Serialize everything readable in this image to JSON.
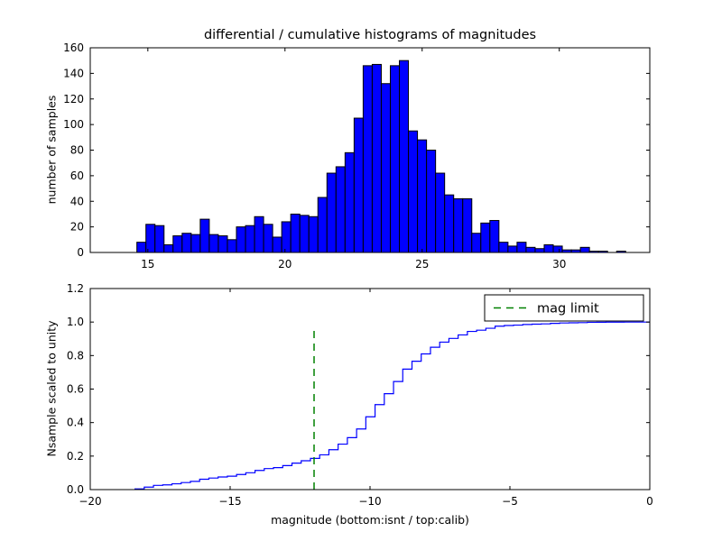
{
  "figure": {
    "title": "differential / cumulative histograms of magnitudes",
    "background": "#ffffff"
  },
  "chart_data": [
    {
      "id": "top-histogram",
      "type": "bar",
      "ylabel": "number of samples",
      "xlim": [
        12.9,
        33.3
      ],
      "ylim": [
        0,
        160
      ],
      "xticks": [
        15,
        20,
        25,
        30
      ],
      "xtick_labels": [
        "15",
        "20",
        "25",
        "30"
      ],
      "yticks": [
        0,
        20,
        40,
        60,
        80,
        100,
        120,
        140,
        160
      ],
      "ytick_labels": [
        "0",
        "20",
        "40",
        "60",
        "80",
        "100",
        "120",
        "140",
        "160"
      ],
      "bar_color": "#0000ff",
      "bar_edge_color": "#000000",
      "grid": false,
      "bin_start": 14.6,
      "bin_width": 0.33,
      "counts": [
        8,
        22,
        21,
        6,
        13,
        15,
        14,
        26,
        14,
        13,
        10,
        20,
        21,
        28,
        22,
        12,
        24,
        30,
        29,
        28,
        43,
        62,
        67,
        78,
        105,
        146,
        147,
        132,
        146,
        150,
        95,
        88,
        80,
        62,
        45,
        42,
        42,
        15,
        23,
        25,
        8,
        5,
        8,
        4,
        3,
        6,
        5,
        2,
        2,
        4,
        1,
        1,
        0,
        1
      ]
    },
    {
      "id": "bottom-cumulative",
      "type": "line",
      "style": "step",
      "ylabel": "Nsample scaled to unity",
      "xlabel": "magnitude (bottom:isnt / top:calib)",
      "xlim": [
        -20,
        0
      ],
      "ylim": [
        0,
        1.2
      ],
      "xticks": [
        -20,
        -15,
        -10,
        -5,
        0
      ],
      "xtick_labels": [
        "−20",
        "−15",
        "−10",
        "−5",
        "0"
      ],
      "yticks": [
        0,
        0.2,
        0.4,
        0.6,
        0.8,
        1.0,
        1.2
      ],
      "ytick_labels": [
        "0.0",
        "0.2",
        "0.4",
        "0.6",
        "0.8",
        "1.0",
        "1.2"
      ],
      "line_color": "#0000ff",
      "grid": false,
      "cumulative_of": "top-histogram counts, scaled to unity",
      "x_offset_from_calib": -33,
      "extend_to_x": 0,
      "vline": {
        "x": -12,
        "ymin": 0.0,
        "ymax": 0.97,
        "color": "#008000",
        "style": "dashed",
        "label": "mag limit"
      },
      "legend": {
        "label": "mag limit",
        "position": "upper right",
        "line_color": "#008000",
        "line_style": "dashed"
      }
    }
  ]
}
